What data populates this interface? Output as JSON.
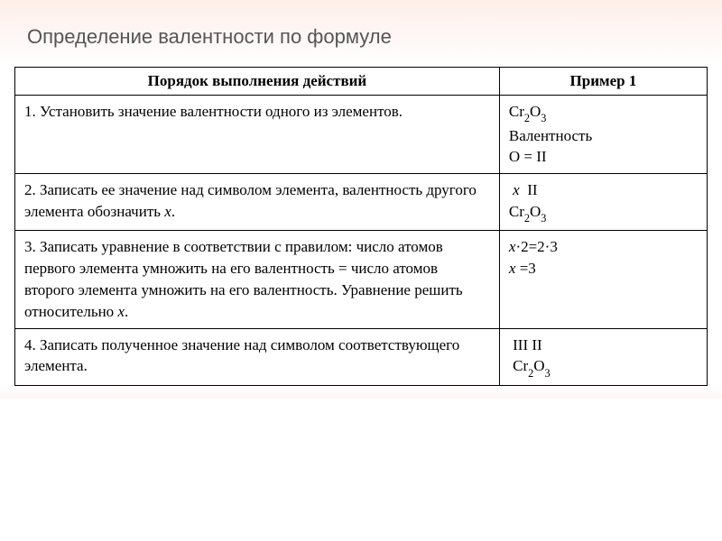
{
  "header": {
    "title": "Определение валентности по формуле"
  },
  "table": {
    "columns": {
      "steps": "Порядок выполнения действий",
      "example": "Пример 1"
    },
    "rows": [
      {
        "num": "1.",
        "text": "Установить значение валентности одного из элементов.",
        "example_lines": [
          "Cr₂O₃",
          "Валентность",
          "O = II"
        ]
      },
      {
        "num": "2.",
        "text": "Записать ее значение над символом элемента, валентность другого элемента обозначить x.",
        "example_lines": [
          " x  II",
          "Cr₂O₃"
        ]
      },
      {
        "num": "3.",
        "text": "Записать уравнение в соответствии с правилом: число атомов первого элемента умножить на его валентность = число атомов второго элемента умножить на его валентность. Уравнение решить относительно x.",
        "example_lines": [
          "x·2=2·3",
          "x =3"
        ]
      },
      {
        "num": "4.",
        "text": "Записать полученное значение над символом соответствующего элемента.",
        "example_lines": [
          " III II",
          " Cr₂O₃"
        ]
      }
    ]
  },
  "style": {
    "header_bg_top": "#fdf0e8",
    "header_bg_bottom": "#ffffff",
    "header_color": "#555555",
    "header_fontsize": 22,
    "cell_fontsize": 17,
    "border_color": "#000000",
    "col_widths": [
      "70%",
      "30%"
    ],
    "footer_bg": "#fef6f5"
  }
}
